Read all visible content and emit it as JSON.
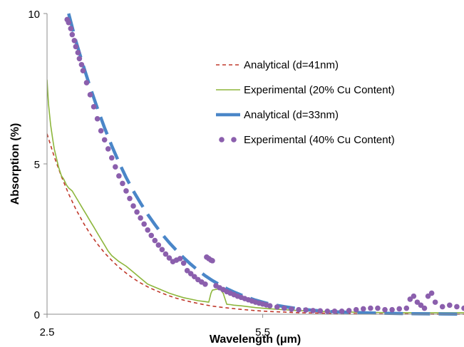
{
  "chart_data": {
    "type": "line",
    "title": "",
    "xlabel": "Wavelength (μm)",
    "ylabel": "Absorption (%)",
    "xlim": [
      2.5,
      8.3
    ],
    "ylim": [
      0,
      10
    ],
    "x_ticks": [
      {
        "value": 2.5,
        "label": "2.5"
      },
      {
        "value": 5.5,
        "label": "5.5"
      }
    ],
    "y_ticks": [
      {
        "value": 0,
        "label": "0"
      },
      {
        "value": 5,
        "label": "5"
      },
      {
        "value": 10,
        "label": "10"
      }
    ],
    "grid": false,
    "legend_position": "top-right",
    "series": [
      {
        "name": "Analytical (d=41nm)",
        "style": "dashed-thin",
        "color": "#C0392B",
        "x": [
          2.5,
          2.6,
          2.7,
          2.8,
          2.9,
          3.0,
          3.1,
          3.2,
          3.3,
          3.4,
          3.5,
          3.6,
          3.7,
          3.8,
          3.9,
          4.0,
          4.1,
          4.2,
          4.3,
          4.4,
          4.5,
          4.6,
          4.7,
          4.8,
          4.9,
          5.0,
          5.2,
          5.4,
          5.6,
          5.8,
          6.0,
          6.5,
          7.0,
          7.5,
          8.0,
          8.3
        ],
        "y": [
          6.0,
          5.24,
          4.58,
          4.0,
          3.5,
          3.06,
          2.67,
          2.34,
          2.04,
          1.79,
          1.56,
          1.37,
          1.19,
          1.04,
          0.91,
          0.8,
          0.7,
          0.61,
          0.53,
          0.47,
          0.41,
          0.36,
          0.31,
          0.27,
          0.24,
          0.21,
          0.16,
          0.12,
          0.09,
          0.07,
          0.05,
          0.03,
          0.01,
          0.01,
          0.0,
          0.0
        ]
      },
      {
        "name": "Experimental (20% Cu Content)",
        "style": "solid-noisy",
        "color": "#8DB63C",
        "x": [
          2.5,
          2.52,
          2.55,
          2.58,
          2.6,
          2.63,
          2.66,
          2.7,
          2.73,
          2.77,
          2.8,
          2.85,
          2.9,
          2.95,
          3.0,
          3.05,
          3.1,
          3.15,
          3.2,
          3.25,
          3.3,
          3.35,
          3.4,
          3.5,
          3.6,
          3.7,
          3.8,
          3.9,
          4.0,
          4.1,
          4.2,
          4.3,
          4.4,
          4.5,
          4.6,
          4.7,
          4.75,
          4.78,
          4.8,
          4.9,
          4.95,
          5.0,
          5.05,
          5.1,
          5.2,
          5.3,
          5.4,
          5.5,
          5.6,
          5.8,
          6.0,
          6.2,
          6.5,
          7.0,
          7.5,
          8.0,
          8.3
        ],
        "y": [
          7.8,
          7.0,
          6.3,
          5.8,
          5.5,
          5.2,
          4.9,
          4.6,
          4.5,
          4.3,
          4.2,
          4.1,
          3.9,
          3.7,
          3.5,
          3.3,
          3.1,
          2.9,
          2.7,
          2.5,
          2.3,
          2.1,
          1.95,
          1.75,
          1.6,
          1.4,
          1.2,
          1.0,
          0.9,
          0.8,
          0.7,
          0.62,
          0.55,
          0.5,
          0.45,
          0.42,
          0.4,
          0.7,
          0.8,
          0.85,
          0.7,
          0.33,
          0.32,
          0.3,
          0.28,
          0.25,
          0.22,
          0.2,
          0.18,
          0.15,
          0.12,
          0.1,
          0.08,
          0.06,
          0.05,
          0.05,
          0.05
        ]
      },
      {
        "name": "Analytical (d=33nm)",
        "style": "dashed-thick",
        "color": "#4A86C8",
        "x": [
          2.8,
          2.9,
          3.0,
          3.1,
          3.2,
          3.3,
          3.4,
          3.5,
          3.6,
          3.7,
          3.8,
          3.9,
          4.0,
          4.1,
          4.2,
          4.3,
          4.4,
          4.5,
          4.6,
          4.7,
          4.8,
          4.9,
          5.0,
          5.1,
          5.2,
          5.3,
          5.4,
          5.5,
          5.6,
          5.8,
          6.0,
          6.2,
          6.5,
          7.0,
          7.5,
          8.0,
          8.3
        ],
        "y": [
          10.0,
          9.1,
          8.3,
          7.55,
          6.85,
          6.2,
          5.6,
          5.05,
          4.55,
          4.1,
          3.7,
          3.32,
          2.98,
          2.66,
          2.38,
          2.12,
          1.88,
          1.66,
          1.46,
          1.28,
          1.12,
          0.98,
          0.85,
          0.74,
          0.64,
          0.55,
          0.47,
          0.4,
          0.34,
          0.25,
          0.18,
          0.13,
          0.08,
          0.04,
          0.02,
          0.01,
          0.0
        ]
      },
      {
        "name": "Experimental (40% Cu Content)",
        "style": "dots",
        "color": "#8B5FAD",
        "x": [
          2.78,
          2.8,
          2.83,
          2.85,
          2.88,
          2.9,
          2.93,
          2.95,
          2.98,
          3.0,
          3.05,
          3.1,
          3.15,
          3.2,
          3.25,
          3.3,
          3.35,
          3.4,
          3.45,
          3.5,
          3.55,
          3.6,
          3.65,
          3.7,
          3.75,
          3.8,
          3.85,
          3.9,
          3.95,
          4.0,
          4.05,
          4.1,
          4.15,
          4.2,
          4.25,
          4.3,
          4.35,
          4.4,
          4.45,
          4.5,
          4.55,
          4.6,
          4.65,
          4.7,
          4.72,
          4.75,
          4.78,
          4.8,
          4.85,
          4.9,
          4.95,
          5.0,
          5.05,
          5.1,
          5.15,
          5.2,
          5.25,
          5.3,
          5.35,
          5.4,
          5.45,
          5.5,
          5.55,
          5.6,
          5.7,
          5.8,
          5.9,
          6.0,
          6.1,
          6.2,
          6.3,
          6.4,
          6.5,
          6.6,
          6.7,
          6.8,
          6.9,
          7.0,
          7.1,
          7.2,
          7.3,
          7.4,
          7.5,
          7.55,
          7.6,
          7.65,
          7.7,
          7.75,
          7.8,
          7.85,
          7.9,
          8.0,
          8.1,
          8.2,
          8.3
        ],
        "y": [
          9.8,
          9.7,
          9.5,
          9.3,
          9.1,
          8.9,
          8.7,
          8.5,
          8.3,
          8.1,
          7.7,
          7.3,
          6.9,
          6.5,
          6.1,
          5.8,
          5.5,
          5.2,
          4.9,
          4.6,
          4.35,
          4.1,
          3.85,
          3.6,
          3.4,
          3.2,
          3.0,
          2.8,
          2.62,
          2.45,
          2.3,
          2.15,
          2.0,
          1.87,
          1.75,
          1.8,
          1.85,
          1.7,
          1.45,
          1.35,
          1.25,
          1.15,
          1.07,
          1.0,
          1.9,
          1.85,
          1.8,
          1.78,
          0.95,
          0.88,
          0.82,
          0.75,
          0.7,
          0.65,
          0.6,
          0.56,
          0.52,
          0.48,
          0.44,
          0.4,
          0.37,
          0.34,
          0.31,
          0.28,
          0.24,
          0.2,
          0.17,
          0.15,
          0.14,
          0.12,
          0.11,
          0.1,
          0.1,
          0.1,
          0.12,
          0.15,
          0.18,
          0.2,
          0.2,
          0.15,
          0.15,
          0.18,
          0.2,
          0.5,
          0.6,
          0.4,
          0.3,
          0.2,
          0.6,
          0.7,
          0.4,
          0.25,
          0.3,
          0.25,
          0.2
        ]
      }
    ]
  }
}
